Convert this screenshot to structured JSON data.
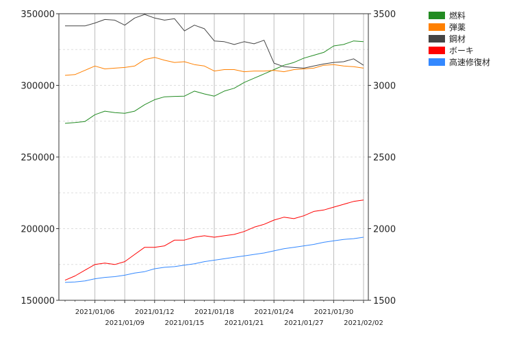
{
  "chart_data": {
    "type": "line",
    "title": "",
    "x": [
      "2021/01/03",
      "2021/01/04",
      "2021/01/05",
      "2021/01/06",
      "2021/01/07",
      "2021/01/08",
      "2021/01/09",
      "2021/01/10",
      "2021/01/11",
      "2021/01/12",
      "2021/01/13",
      "2021/01/14",
      "2021/01/15",
      "2021/01/16",
      "2021/01/17",
      "2021/01/18",
      "2021/01/19",
      "2021/01/20",
      "2021/01/21",
      "2021/01/22",
      "2021/01/23",
      "2021/01/24",
      "2021/01/25",
      "2021/01/26",
      "2021/01/27",
      "2021/01/28",
      "2021/01/29",
      "2021/01/30",
      "2021/01/31",
      "2021/02/01",
      "2021/02/02"
    ],
    "x_tick_labels": [
      {
        "date": "2021/01/06",
        "row": 0
      },
      {
        "date": "2021/01/09",
        "row": 1
      },
      {
        "date": "2021/01/12",
        "row": 0
      },
      {
        "date": "2021/01/15",
        "row": 1
      },
      {
        "date": "2021/01/18",
        "row": 0
      },
      {
        "date": "2021/01/21",
        "row": 1
      },
      {
        "date": "2021/01/24",
        "row": 0
      },
      {
        "date": "2021/01/27",
        "row": 1
      },
      {
        "date": "2021/01/30",
        "row": 0
      },
      {
        "date": "2021/02/02",
        "row": 1
      }
    ],
    "y_left": {
      "min": 150000,
      "max": 350000,
      "ticks": [
        150000,
        200000,
        250000,
        300000,
        350000
      ],
      "tick_labels": [
        "150000",
        "200000",
        "250000",
        "300000",
        "350000"
      ]
    },
    "y_right": {
      "min": 1500,
      "max": 3500,
      "ticks": [
        1500,
        2000,
        2500,
        3000,
        3500
      ],
      "tick_labels": [
        "1500",
        "2000",
        "2500",
        "3000",
        "3500"
      ]
    },
    "grid": true,
    "legend_position": "top-right",
    "series": [
      {
        "name": "燃料",
        "color": "#228B22",
        "axis": "left",
        "values": [
          273500,
          274000,
          274800,
          279500,
          282000,
          281000,
          280500,
          282000,
          286500,
          290000,
          292000,
          292300,
          292500,
          296000,
          294000,
          292500,
          296000,
          298000,
          302000,
          305000,
          308000,
          311000,
          314000,
          316000,
          319000,
          321000,
          323000,
          327500,
          328500,
          331000,
          330500
        ]
      },
      {
        "name": "弾薬",
        "color": "#FF8000",
        "axis": "left",
        "values": [
          307000,
          307500,
          310500,
          313500,
          311500,
          312000,
          312500,
          313500,
          318000,
          319500,
          317500,
          316000,
          316500,
          314500,
          313500,
          310000,
          311000,
          311000,
          309500,
          310000,
          310000,
          310500,
          309500,
          311000,
          311500,
          312000,
          314000,
          314500,
          313500,
          313000,
          312000
        ]
      },
      {
        "name": "鋼材",
        "color": "#444444",
        "axis": "left",
        "values": [
          341500,
          341500,
          341500,
          343500,
          346000,
          345500,
          342000,
          347000,
          349500,
          347000,
          345500,
          346500,
          338000,
          342000,
          339500,
          331000,
          330500,
          328500,
          330500,
          329000,
          331500,
          315500,
          313000,
          312500,
          312000,
          313500,
          315000,
          316000,
          316500,
          318500,
          314000
        ]
      },
      {
        "name": "ボーキ",
        "color": "#FF0000",
        "axis": "right",
        "values": [
          1640,
          1670,
          1710,
          1750,
          1760,
          1750,
          1770,
          1820,
          1870,
          1870,
          1880,
          1920,
          1920,
          1940,
          1950,
          1940,
          1950,
          1960,
          1980,
          2010,
          2030,
          2060,
          2080,
          2070,
          2090,
          2120,
          2130,
          2150,
          2170,
          2190,
          2200
        ]
      },
      {
        "name": "高速修復材",
        "color": "#3388FF",
        "axis": "right",
        "values": [
          1625,
          1628,
          1635,
          1650,
          1660,
          1665,
          1675,
          1690,
          1700,
          1720,
          1730,
          1735,
          1745,
          1755,
          1770,
          1780,
          1790,
          1800,
          1810,
          1820,
          1830,
          1845,
          1860,
          1870,
          1880,
          1890,
          1905,
          1915,
          1925,
          1930,
          1940
        ]
      }
    ]
  }
}
